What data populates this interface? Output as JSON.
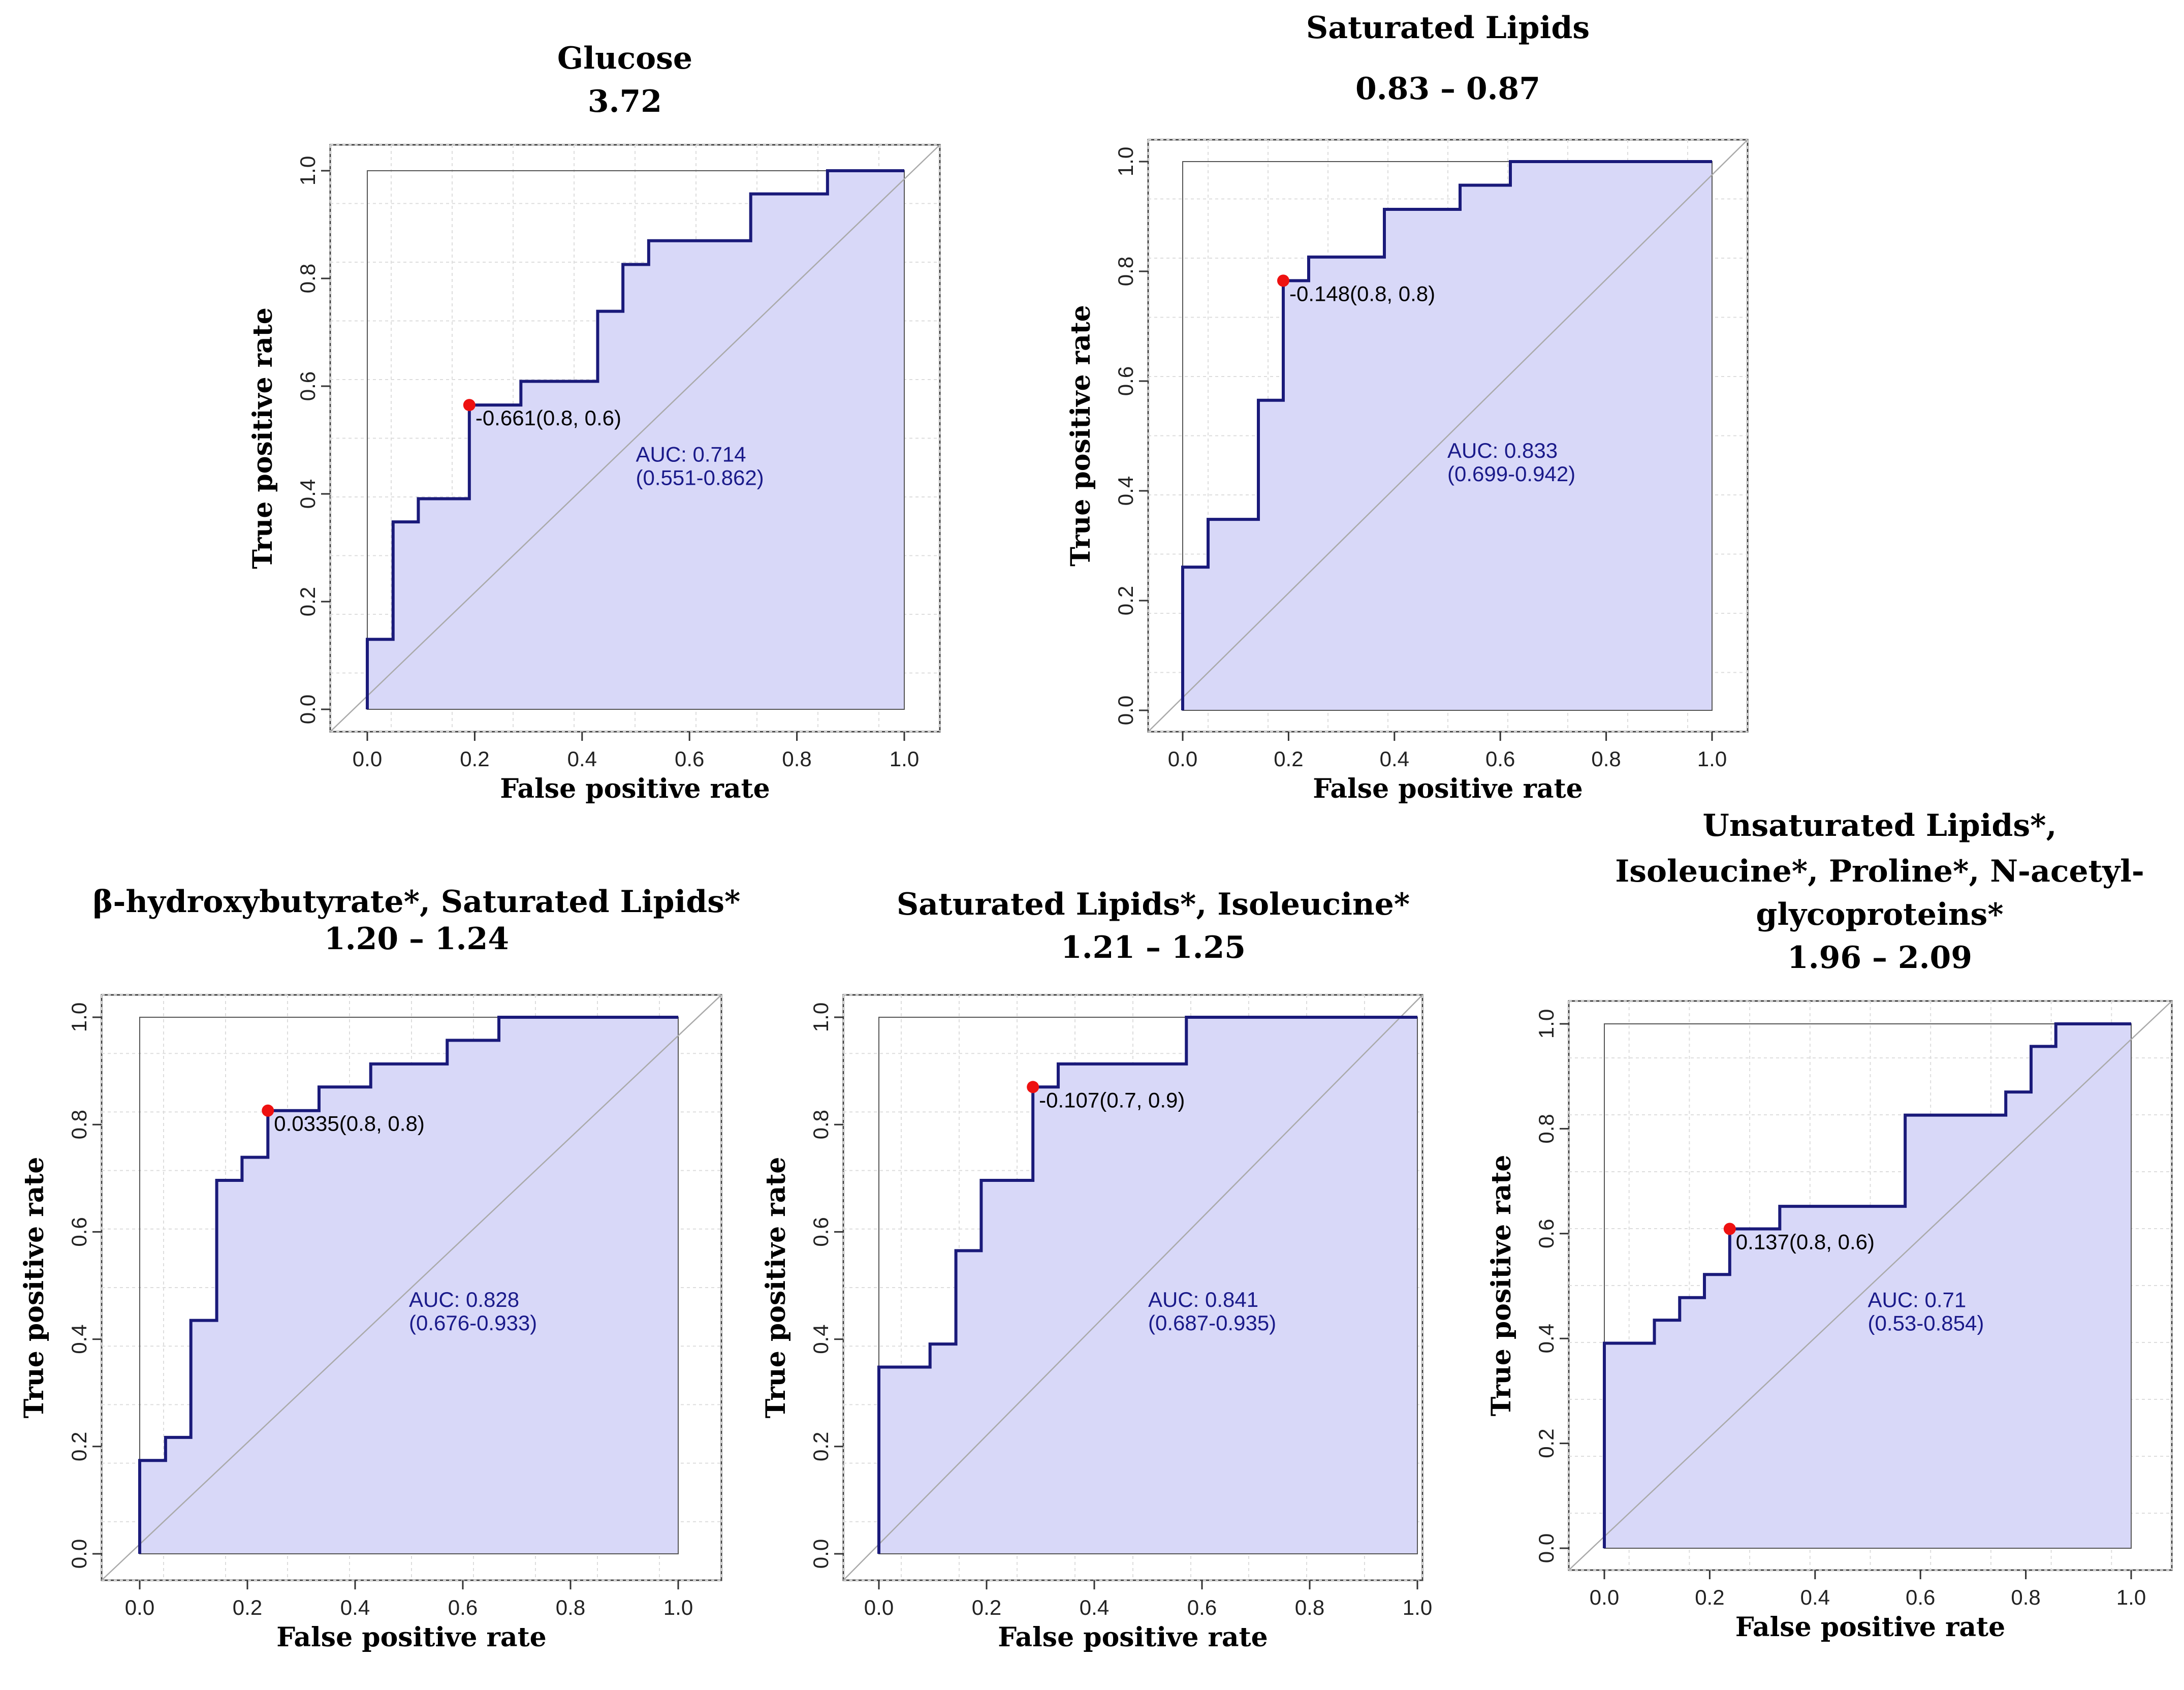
{
  "chart_data": [
    {
      "type": "line",
      "title_lines": [
        "Glucose",
        "3.72"
      ],
      "xlabel": "False positive rate",
      "ylabel": "True positive rate",
      "xlim": [
        0,
        1
      ],
      "ylim": [
        0,
        1
      ],
      "xticks": [
        "0.0",
        "0.2",
        "0.4",
        "0.6",
        "0.8",
        "1.0"
      ],
      "yticks": [
        "0.0",
        "0.2",
        "0.4",
        "0.6",
        "0.8",
        "1.0"
      ],
      "grid": true,
      "roc": [
        [
          0,
          0
        ],
        [
          0,
          0.13
        ],
        [
          0.048,
          0.13
        ],
        [
          0.048,
          0.348
        ],
        [
          0.095,
          0.348
        ],
        [
          0.095,
          0.391
        ],
        [
          0.19,
          0.391
        ],
        [
          0.19,
          0.565
        ],
        [
          0.286,
          0.565
        ],
        [
          0.286,
          0.609
        ],
        [
          0.429,
          0.609
        ],
        [
          0.429,
          0.739
        ],
        [
          0.476,
          0.739
        ],
        [
          0.476,
          0.826
        ],
        [
          0.524,
          0.826
        ],
        [
          0.524,
          0.87
        ],
        [
          0.714,
          0.87
        ],
        [
          0.714,
          0.957
        ],
        [
          0.857,
          0.957
        ],
        [
          0.857,
          1
        ],
        [
          1,
          1
        ]
      ],
      "threshold_point": [
        0.19,
        0.565
      ],
      "threshold_label": "-0.661(0.8, 0.6)",
      "auc_text": "AUC: 0.714",
      "ci_text": "(0.551-0.862)",
      "auc_anchor": [
        0.5,
        0.46
      ]
    },
    {
      "type": "line",
      "title_lines": [
        "Saturated Lipids",
        "0.83 – 0.87"
      ],
      "xlabel": "False positive rate",
      "ylabel": "True positive rate",
      "xlim": [
        0,
        1
      ],
      "ylim": [
        0,
        1
      ],
      "xticks": [
        "0.0",
        "0.2",
        "0.4",
        "0.6",
        "0.8",
        "1.0"
      ],
      "yticks": [
        "0.0",
        "0.2",
        "0.4",
        "0.6",
        "0.8",
        "1.0"
      ],
      "grid": true,
      "roc": [
        [
          0,
          0
        ],
        [
          0,
          0.261
        ],
        [
          0.048,
          0.261
        ],
        [
          0.048,
          0.348
        ],
        [
          0.143,
          0.348
        ],
        [
          0.143,
          0.565
        ],
        [
          0.19,
          0.565
        ],
        [
          0.19,
          0.783
        ],
        [
          0.238,
          0.783
        ],
        [
          0.238,
          0.826
        ],
        [
          0.381,
          0.826
        ],
        [
          0.381,
          0.913
        ],
        [
          0.524,
          0.913
        ],
        [
          0.524,
          0.957
        ],
        [
          0.619,
          0.957
        ],
        [
          0.619,
          1
        ],
        [
          1,
          1
        ]
      ],
      "threshold_point": [
        0.19,
        0.783
      ],
      "threshold_label": "-0.148(0.8, 0.8)",
      "auc_text": "AUC: 0.833",
      "ci_text": "(0.699-0.942)",
      "auc_anchor": [
        0.5,
        0.46
      ]
    },
    {
      "type": "line",
      "title_lines": [
        "β-hydroxybutyrate*, Saturated Lipids*",
        "1.20 – 1.24"
      ],
      "xlabel": "False positive rate",
      "ylabel": "True positive rate",
      "xlim": [
        0,
        1
      ],
      "ylim": [
        0,
        1
      ],
      "xticks": [
        "0.0",
        "0.2",
        "0.4",
        "0.6",
        "0.8",
        "1.0"
      ],
      "yticks": [
        "0.0",
        "0.2",
        "0.4",
        "0.6",
        "0.8",
        "1.0"
      ],
      "grid": true,
      "roc": [
        [
          0,
          0
        ],
        [
          0,
          0.174
        ],
        [
          0.048,
          0.174
        ],
        [
          0.048,
          0.217
        ],
        [
          0.095,
          0.217
        ],
        [
          0.095,
          0.435
        ],
        [
          0.143,
          0.435
        ],
        [
          0.143,
          0.696
        ],
        [
          0.19,
          0.696
        ],
        [
          0.19,
          0.739
        ],
        [
          0.238,
          0.739
        ],
        [
          0.238,
          0.826
        ],
        [
          0.333,
          0.826
        ],
        [
          0.333,
          0.87
        ],
        [
          0.429,
          0.87
        ],
        [
          0.429,
          0.913
        ],
        [
          0.571,
          0.913
        ],
        [
          0.571,
          0.957
        ],
        [
          0.667,
          0.957
        ],
        [
          0.667,
          1
        ],
        [
          1,
          1
        ]
      ],
      "threshold_point": [
        0.238,
        0.826
      ],
      "threshold_label": "0.0335(0.8, 0.8)",
      "auc_text": "AUC: 0.828",
      "ci_text": "(0.676-0.933)",
      "auc_anchor": [
        0.5,
        0.46
      ]
    },
    {
      "type": "line",
      "title_lines": [
        "Saturated Lipids*, Isoleucine*",
        "1.21 – 1.25"
      ],
      "xlabel": "False positive rate",
      "ylabel": "True positive rate",
      "xlim": [
        0,
        1
      ],
      "ylim": [
        0,
        1
      ],
      "xticks": [
        "0.0",
        "0.2",
        "0.4",
        "0.6",
        "0.8",
        "1.0"
      ],
      "yticks": [
        "0.0",
        "0.2",
        "0.4",
        "0.6",
        "0.8",
        "1.0"
      ],
      "grid": true,
      "roc": [
        [
          0,
          0
        ],
        [
          0,
          0.348
        ],
        [
          0.095,
          0.348
        ],
        [
          0.095,
          0.391
        ],
        [
          0.143,
          0.391
        ],
        [
          0.143,
          0.565
        ],
        [
          0.19,
          0.565
        ],
        [
          0.19,
          0.696
        ],
        [
          0.286,
          0.696
        ],
        [
          0.286,
          0.87
        ],
        [
          0.333,
          0.87
        ],
        [
          0.333,
          0.913
        ],
        [
          0.571,
          0.913
        ],
        [
          0.571,
          1
        ],
        [
          1,
          1
        ]
      ],
      "threshold_point": [
        0.286,
        0.87
      ],
      "threshold_label": "-0.107(0.7, 0.9)",
      "auc_text": "AUC: 0.841",
      "ci_text": "(0.687-0.935)",
      "auc_anchor": [
        0.5,
        0.46
      ]
    },
    {
      "type": "line",
      "title_lines": [
        "Unsaturated Lipids*,",
        "Isoleucine*, Proline*, N-acetyl-",
        "glycoproteins*",
        "1.96 – 2.09"
      ],
      "xlabel": "False positive rate",
      "ylabel": "True positive rate",
      "xlim": [
        0,
        1
      ],
      "ylim": [
        0,
        1
      ],
      "xticks": [
        "0.0",
        "0.2",
        "0.4",
        "0.6",
        "0.8",
        "1.0"
      ],
      "yticks": [
        "0.0",
        "0.2",
        "0.4",
        "0.6",
        "0.8",
        "1.0"
      ],
      "grid": true,
      "roc": [
        [
          0,
          0
        ],
        [
          0,
          0.391
        ],
        [
          0.095,
          0.391
        ],
        [
          0.095,
          0.435
        ],
        [
          0.143,
          0.435
        ],
        [
          0.143,
          0.478
        ],
        [
          0.19,
          0.478
        ],
        [
          0.19,
          0.522
        ],
        [
          0.238,
          0.522
        ],
        [
          0.238,
          0.609
        ],
        [
          0.333,
          0.609
        ],
        [
          0.333,
          0.652
        ],
        [
          0.571,
          0.652
        ],
        [
          0.571,
          0.826
        ],
        [
          0.762,
          0.826
        ],
        [
          0.762,
          0.87
        ],
        [
          0.81,
          0.87
        ],
        [
          0.81,
          0.957
        ],
        [
          0.857,
          0.957
        ],
        [
          0.857,
          1
        ],
        [
          1,
          1
        ]
      ],
      "threshold_point": [
        0.238,
        0.609
      ],
      "threshold_label": "0.137(0.8, 0.6)",
      "auc_text": "AUC: 0.71",
      "ci_text": "(0.53-0.854)",
      "auc_anchor": [
        0.5,
        0.46
      ]
    }
  ],
  "colors": {
    "roc_line": "#1a1a7a",
    "fill": "#d8d8f8",
    "auc_text": "#1a1a8a",
    "threshold_point": "#ee1111",
    "diagonal": "#aaaaaa",
    "grid": "#dddddd",
    "frame": "#444444"
  }
}
